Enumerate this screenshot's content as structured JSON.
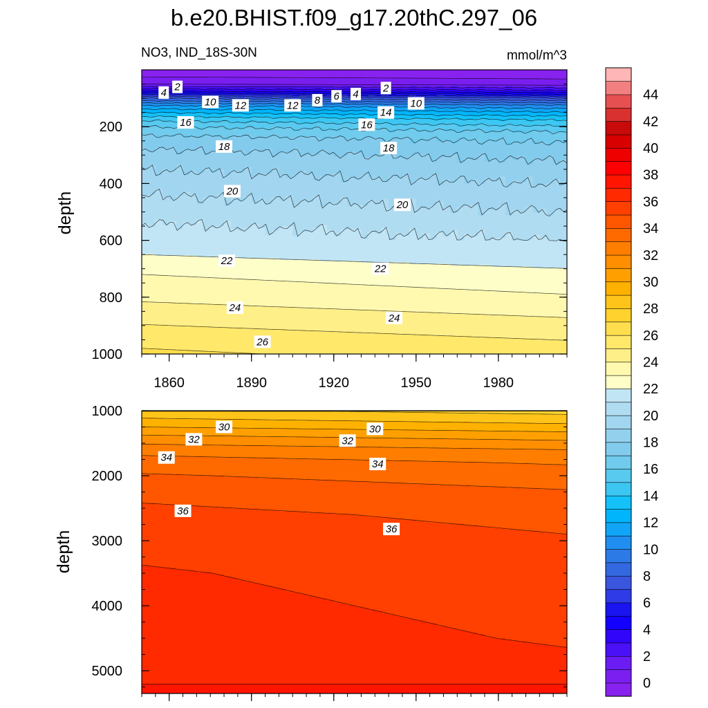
{
  "chart_data": {
    "type": "heatmap",
    "title": "b.e20.BHIST.f09_g17.20thC.297_06",
    "left_subtitle": "NO3, IND_18S-30N",
    "right_subtitle": "mmol/m^3",
    "xlabel": "",
    "ylabel": "depth",
    "x_ticks": [
      1860,
      1890,
      1920,
      1950,
      1980
    ],
    "xlim": [
      1850,
      2005
    ],
    "colorbar_labels": [
      0,
      2,
      4,
      6,
      8,
      10,
      12,
      14,
      16,
      18,
      20,
      22,
      24,
      26,
      28,
      30,
      32,
      34,
      36,
      38,
      40,
      42,
      44
    ],
    "colorbar_levels": {
      "start": -1,
      "step": 1,
      "count": 47
    },
    "colorbar_colors": [
      "#8822ee",
      "#7a1ff0",
      "#6b1cf2",
      "#4a10f6",
      "#3005fa",
      "#1400ff",
      "#1a14f0",
      "#2f3be6",
      "#3a56de",
      "#3368e0",
      "#2c7ae6",
      "#1f8ef0",
      "#10a5f6",
      "#00b5fb",
      "#14c1f8",
      "#3cc7f2",
      "#58c9ef",
      "#70cbed",
      "#82cbed",
      "#93d0ee",
      "#a2d6f0",
      "#b0dcf2",
      "#c1e5f5",
      "#fefec8",
      "#fff9b0",
      "#ffef88",
      "#ffe86a",
      "#ffde4e",
      "#ffd22e",
      "#ffc41a",
      "#ffb100",
      "#ffa000",
      "#ff8f00",
      "#ff7e00",
      "#ff6a00",
      "#ff5600",
      "#ff4000",
      "#ff2a00",
      "#ff1500",
      "#ff0000",
      "#ee0000",
      "#d80000",
      "#c80a0a",
      "#d93030",
      "#e65050",
      "#f28080",
      "#ffb6b6"
    ],
    "upper_panel": {
      "ylim": [
        0,
        1000
      ],
      "y_ticks": [
        200,
        400,
        600,
        800,
        1000
      ],
      "contour_labels": [
        {
          "text": "2",
          "x": 1863,
          "y": 60
        },
        {
          "text": "4",
          "x": 1858,
          "y": 80
        },
        {
          "text": "10",
          "x": 1875,
          "y": 113
        },
        {
          "text": "12",
          "x": 1886,
          "y": 125
        },
        {
          "text": "16",
          "x": 1866,
          "y": 185
        },
        {
          "text": "12",
          "x": 1905,
          "y": 125
        },
        {
          "text": "8",
          "x": 1914,
          "y": 107
        },
        {
          "text": "6",
          "x": 1921,
          "y": 93
        },
        {
          "text": "4",
          "x": 1928,
          "y": 85
        },
        {
          "text": "2",
          "x": 1939,
          "y": 64
        },
        {
          "text": "14",
          "x": 1939,
          "y": 150
        },
        {
          "text": "10",
          "x": 1950,
          "y": 118
        },
        {
          "text": "16",
          "x": 1932,
          "y": 193
        },
        {
          "text": "18",
          "x": 1880,
          "y": 270
        },
        {
          "text": "18",
          "x": 1940,
          "y": 275
        },
        {
          "text": "20",
          "x": 1883,
          "y": 427
        },
        {
          "text": "20",
          "x": 1945,
          "y": 475
        },
        {
          "text": "22",
          "x": 1881,
          "y": 672
        },
        {
          "text": "22",
          "x": 1937,
          "y": 700
        },
        {
          "text": "24",
          "x": 1884,
          "y": 837
        },
        {
          "text": "24",
          "x": 1942,
          "y": 873
        },
        {
          "text": "26",
          "x": 1894,
          "y": 957
        }
      ]
    },
    "lower_panel": {
      "ylim": [
        1000,
        5350
      ],
      "y_ticks": [
        1000,
        2000,
        3000,
        4000,
        5000
      ],
      "contour_labels": [
        {
          "text": "30",
          "x": 1880,
          "y": 1250
        },
        {
          "text": "30",
          "x": 1935,
          "y": 1280
        },
        {
          "text": "32",
          "x": 1869,
          "y": 1440
        },
        {
          "text": "32",
          "x": 1925,
          "y": 1460
        },
        {
          "text": "34",
          "x": 1859,
          "y": 1720
        },
        {
          "text": "34",
          "x": 1936,
          "y": 1820
        },
        {
          "text": "36",
          "x": 1865,
          "y": 2540
        },
        {
          "text": "36",
          "x": 1941,
          "y": 2820
        }
      ]
    }
  }
}
